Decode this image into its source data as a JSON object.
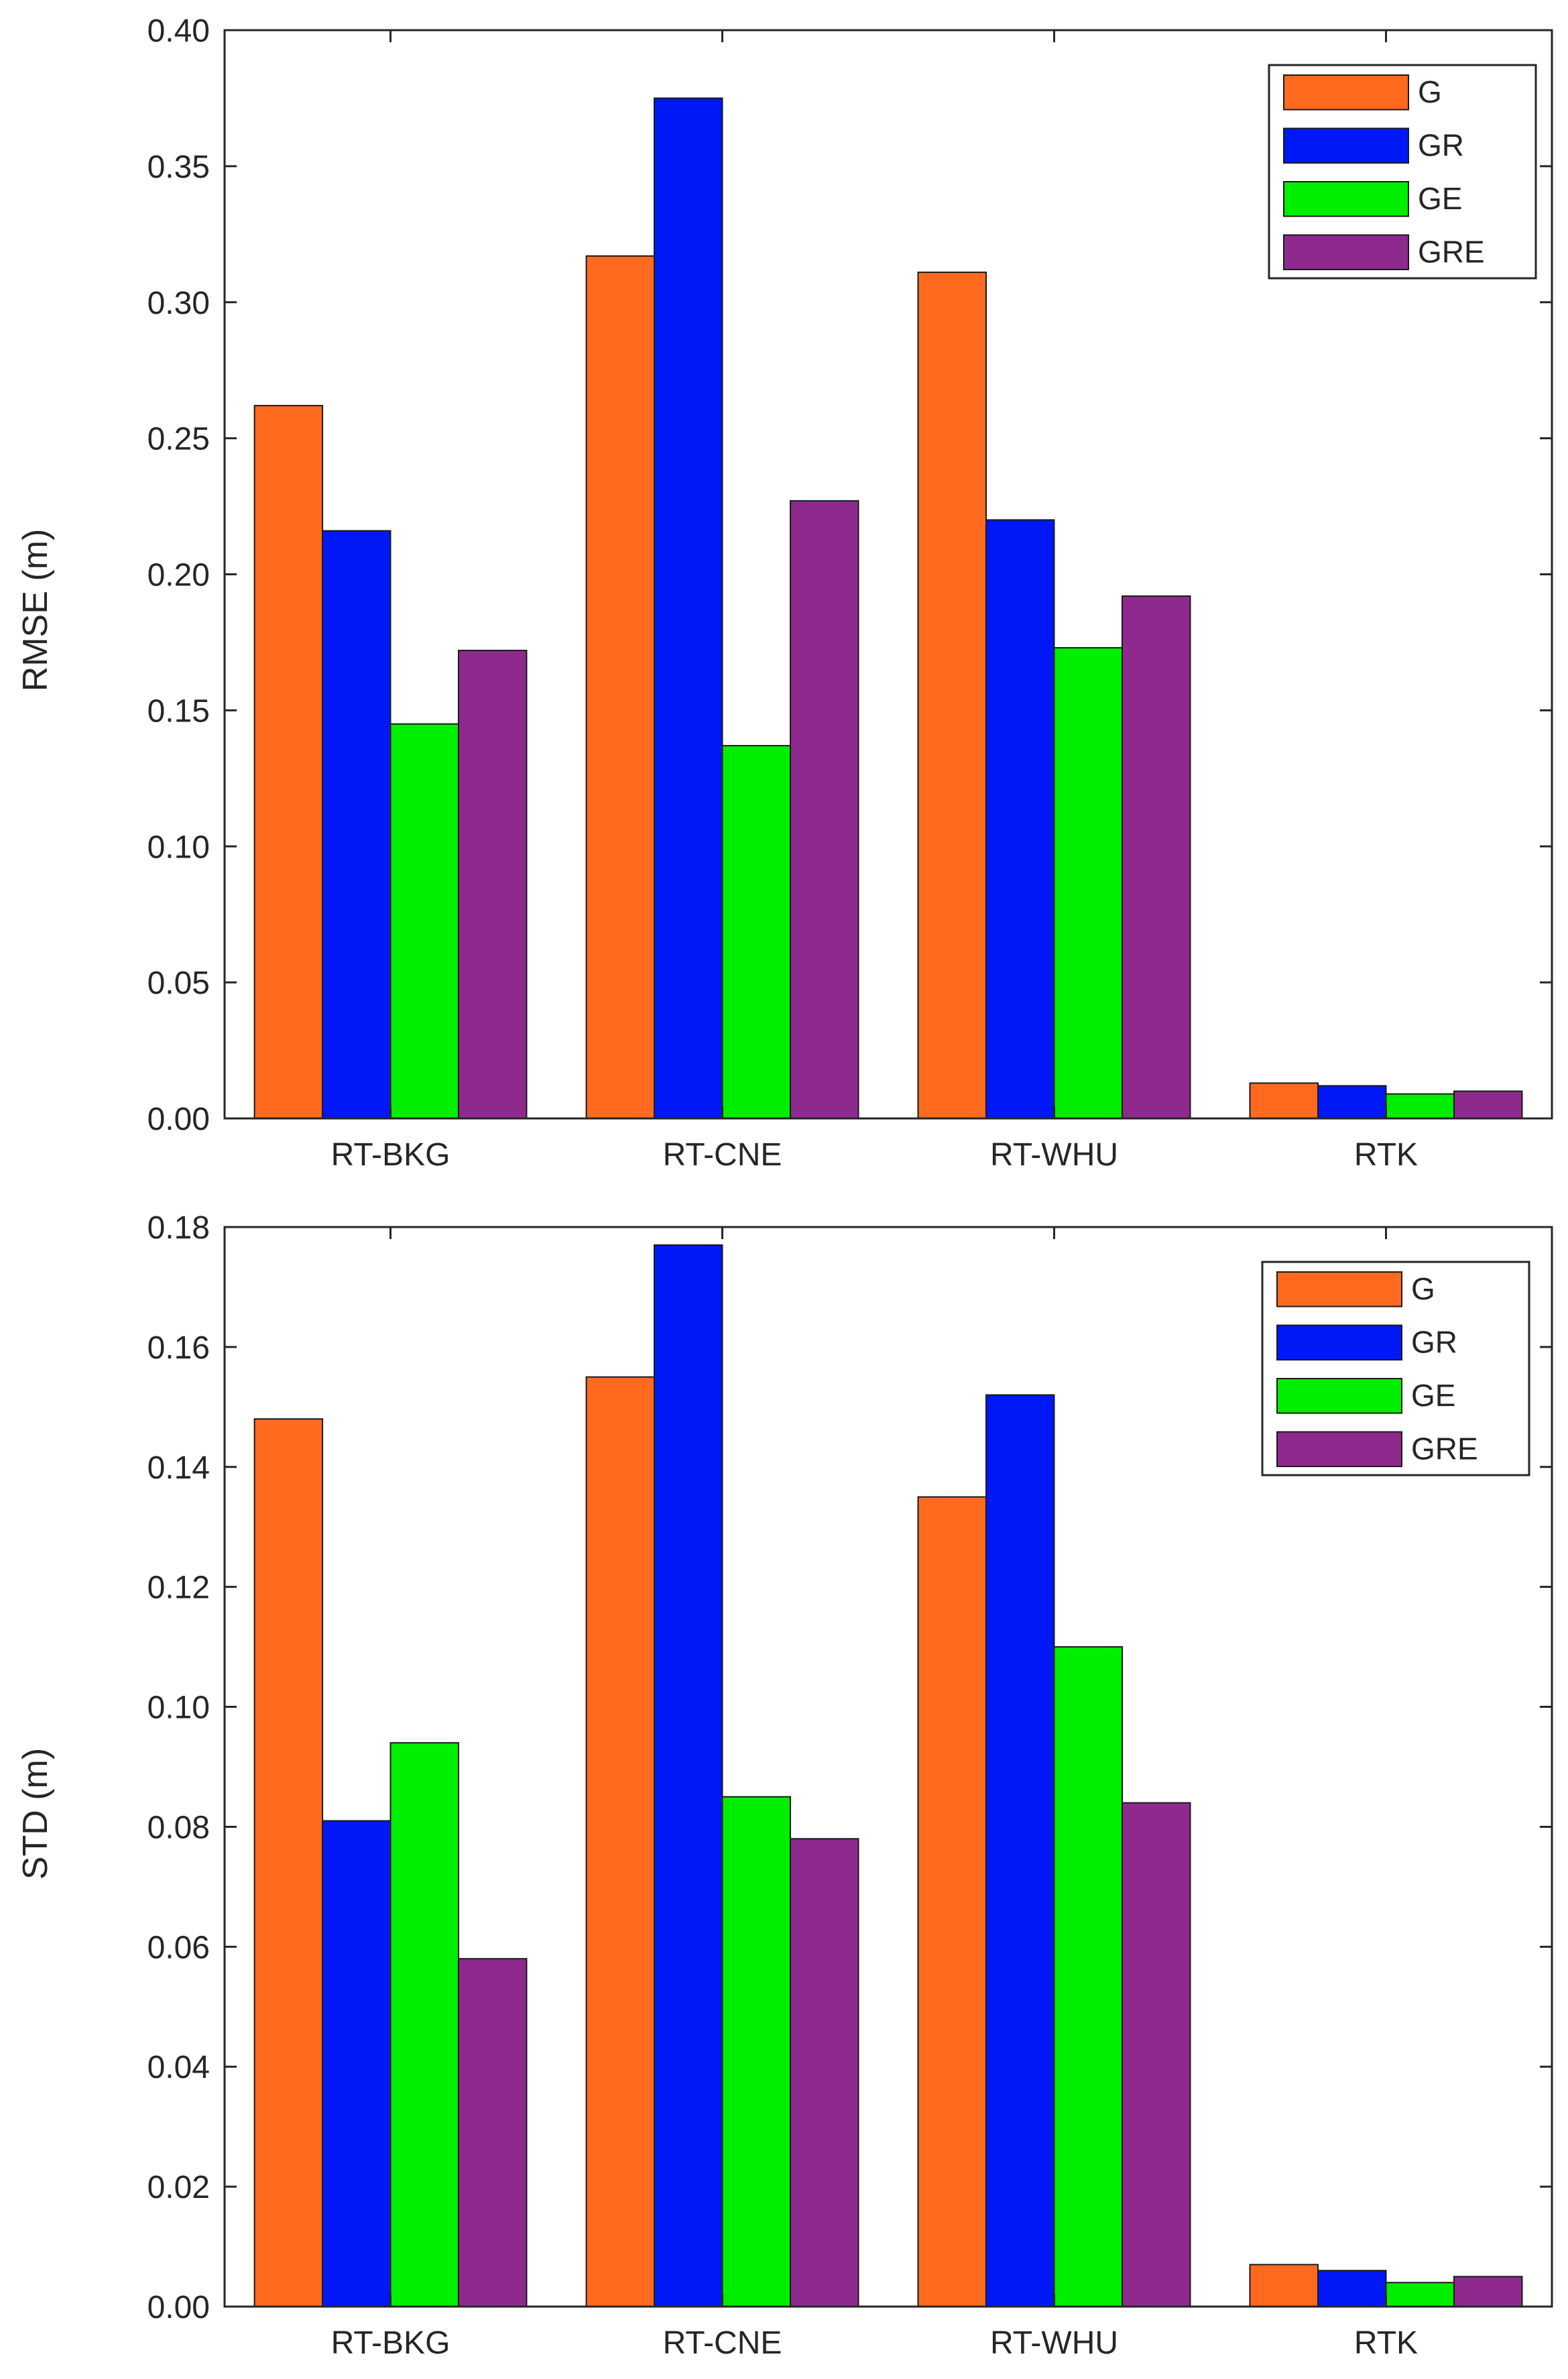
{
  "figure": {
    "charts": [
      {
        "ylabel": "RMSE (m)"
      },
      {
        "ylabel": "STD (m)"
      }
    ]
  },
  "chart_data": [
    {
      "type": "bar",
      "title": "",
      "xlabel": "",
      "ylabel": "RMSE (m)",
      "ylim": [
        0,
        0.4
      ],
      "yticks": [
        "0.00",
        "0.05",
        "0.10",
        "0.15",
        "0.20",
        "0.25",
        "0.30",
        "0.35",
        "0.40"
      ],
      "categories": [
        "RT-BKG",
        "RT-CNE",
        "RT-WHU",
        "RTK"
      ],
      "legend_position": "top-right",
      "grid": false,
      "series": [
        {
          "name": "G",
          "color": "#ff6a1f",
          "values": [
            0.262,
            0.317,
            0.311,
            0.013
          ]
        },
        {
          "name": "GR",
          "color": "#0018f5",
          "values": [
            0.216,
            0.375,
            0.22,
            0.012
          ]
        },
        {
          "name": "GE",
          "color": "#00ef00",
          "values": [
            0.145,
            0.137,
            0.173,
            0.009
          ]
        },
        {
          "name": "GRE",
          "color": "#8e2a8e",
          "values": [
            0.172,
            0.227,
            0.192,
            0.01
          ]
        }
      ]
    },
    {
      "type": "bar",
      "title": "",
      "xlabel": "",
      "ylabel": "STD (m)",
      "ylim": [
        0,
        0.18
      ],
      "yticks": [
        "0.00",
        "0.02",
        "0.04",
        "0.06",
        "0.08",
        "0.10",
        "0.12",
        "0.14",
        "0.16",
        "0.18"
      ],
      "categories": [
        "RT-BKG",
        "RT-CNE",
        "RT-WHU",
        "RTK"
      ],
      "legend_position": "top-right",
      "grid": false,
      "series": [
        {
          "name": "G",
          "color": "#ff6a1f",
          "values": [
            0.148,
            0.155,
            0.135,
            0.007
          ]
        },
        {
          "name": "GR",
          "color": "#0018f5",
          "values": [
            0.081,
            0.177,
            0.152,
            0.006
          ]
        },
        {
          "name": "GE",
          "color": "#00ef00",
          "values": [
            0.094,
            0.085,
            0.11,
            0.004
          ]
        },
        {
          "name": "GRE",
          "color": "#8e2a8e",
          "values": [
            0.058,
            0.078,
            0.084,
            0.005
          ]
        }
      ]
    }
  ]
}
